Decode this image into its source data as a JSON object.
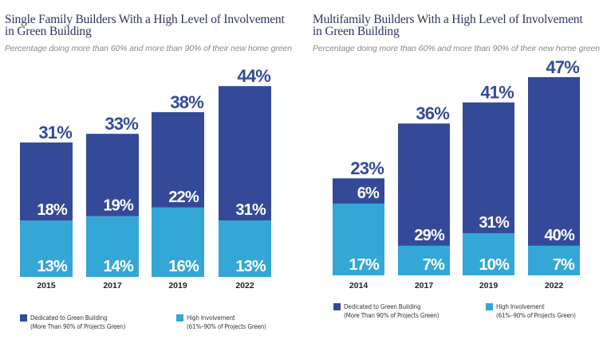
{
  "colors": {
    "dedicated": "#344a98",
    "high_involvement": "#34a7d6",
    "total_label": "#344a98",
    "inner_label": "#ffffff",
    "year_label": "#222222"
  },
  "chart_data": [
    {
      "type": "bar",
      "stacked": true,
      "title": "Single Family Builders With a High Level of Involvement in Green Building",
      "title_lines": [
        "Single Family Builders With a High Level of Involvement",
        "in Green Building"
      ],
      "subtitle": "Percentage doing more than 60% and more than 90% of their new home green",
      "categories": [
        "2015",
        "2017",
        "2019",
        "2022"
      ],
      "series": [
        {
          "name": "High Involvement (61%–90% of Projects Green)",
          "key": "high_involvement",
          "values": [
            13,
            14,
            16,
            13
          ]
        },
        {
          "name": "Dedicated to Green Building (More Than 90% of Projects Green)",
          "key": "dedicated",
          "values": [
            18,
            19,
            22,
            31
          ]
        }
      ],
      "totals": [
        31,
        33,
        38,
        44
      ],
      "value_suffix": "%",
      "ylim": [
        0,
        50
      ],
      "grid": false,
      "legend_position": "bottom",
      "legend": [
        {
          "key": "dedicated",
          "line1": "Dedicated to Green Building",
          "line2": "(More Than 90% of Projects Green)"
        },
        {
          "key": "high_involvement",
          "line1": "High Involvement",
          "line2": "(61%–90% of Projects Green)"
        }
      ]
    },
    {
      "type": "bar",
      "stacked": true,
      "title": "Multifamily Builders With a High Level of Involvement in Green Building",
      "title_lines": [
        "Multifamily Builders With a High Level of Involvement",
        "in Green Building"
      ],
      "subtitle": "Percentage doing more than 60% and more than 90% of their new home green",
      "categories": [
        "2014",
        "2017",
        "2019",
        "2022"
      ],
      "series": [
        {
          "name": "High Involvement (61%–90% of Projects Green)",
          "key": "high_involvement",
          "values": [
            17,
            7,
            10,
            7
          ]
        },
        {
          "name": "Dedicated to Green Building (More Than 90% of Projects Green)",
          "key": "dedicated",
          "values": [
            6,
            29,
            31,
            40
          ]
        }
      ],
      "totals": [
        23,
        36,
        41,
        47
      ],
      "value_suffix": "%",
      "ylim": [
        0,
        50
      ],
      "grid": false,
      "legend_position": "bottom",
      "legend": [
        {
          "key": "dedicated",
          "line1": "Dedicated to Green Building",
          "line2": "(More Than 90% of Projects Green)"
        },
        {
          "key": "high_involvement",
          "line1": "High Involvement",
          "line2": "(61%–90% of Projects Green)"
        }
      ]
    }
  ]
}
